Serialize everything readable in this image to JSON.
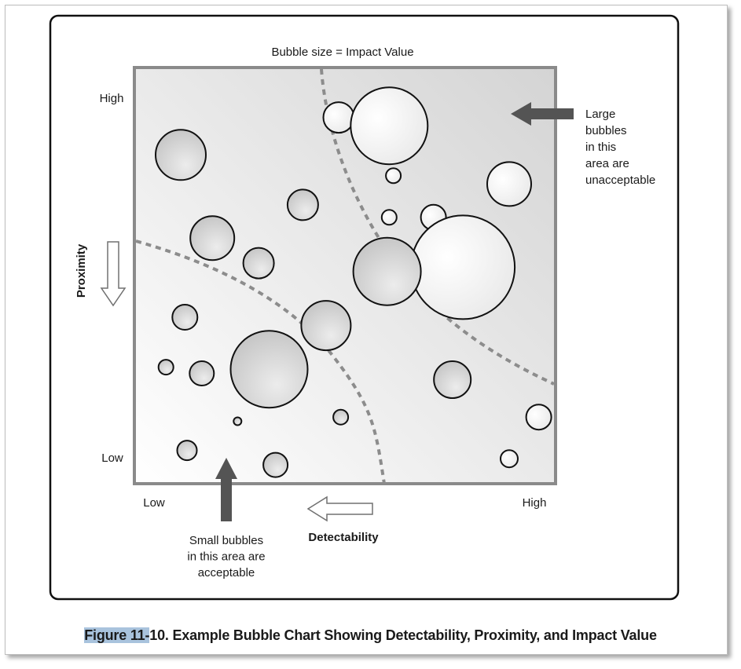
{
  "caption": {
    "label": "Figure 11-",
    "text": "10. Example Bubble Chart Showing Detectability, Proximity, and Impact Value"
  },
  "chart_data": {
    "type": "scatter",
    "title": "Bubble size = Impact Value",
    "xlabel": "Detectability",
    "ylabel": "Proximity",
    "x_ticks": [
      "Low",
      "High"
    ],
    "y_ticks": [
      "High",
      "Low"
    ],
    "xlim": [
      0,
      100
    ],
    "ylim": [
      0,
      100
    ],
    "size_encoding": "Impact Value",
    "annotations": {
      "top_right": "Large\nbubbles\nin this\narea are\nunacceptable",
      "bottom_left": "Small bubbles\nin this area are\nacceptable"
    },
    "points": [
      {
        "x": 11,
        "y": 79,
        "size": 32
      },
      {
        "x": 18.5,
        "y": 59,
        "size": 28
      },
      {
        "x": 29.5,
        "y": 53,
        "size": 19.5
      },
      {
        "x": 40,
        "y": 67,
        "size": 19.5
      },
      {
        "x": 48.5,
        "y": 88,
        "size": 19.5
      },
      {
        "x": 60.5,
        "y": 86,
        "size": 49
      },
      {
        "x": 61.5,
        "y": 74,
        "size": 9.5
      },
      {
        "x": 60.5,
        "y": 64,
        "size": 9.5
      },
      {
        "x": 71,
        "y": 64,
        "size": 16
      },
      {
        "x": 89,
        "y": 72,
        "size": 28
      },
      {
        "x": 78,
        "y": 52,
        "size": 66
      },
      {
        "x": 60,
        "y": 51,
        "size": 43
      },
      {
        "x": 45.5,
        "y": 38,
        "size": 31.5
      },
      {
        "x": 12,
        "y": 40,
        "size": 16
      },
      {
        "x": 7.5,
        "y": 28,
        "size": 9.5
      },
      {
        "x": 16,
        "y": 26.5,
        "size": 15.5
      },
      {
        "x": 32,
        "y": 27.5,
        "size": 49
      },
      {
        "x": 24.5,
        "y": 15,
        "size": 5
      },
      {
        "x": 49,
        "y": 16,
        "size": 9.5
      },
      {
        "x": 12.5,
        "y": 8,
        "size": 12.5
      },
      {
        "x": 33.5,
        "y": 4.5,
        "size": 15.5
      },
      {
        "x": 75.5,
        "y": 25,
        "size": 23.5
      },
      {
        "x": 96,
        "y": 16,
        "size": 16
      },
      {
        "x": 89,
        "y": 6,
        "size": 11
      }
    ]
  }
}
